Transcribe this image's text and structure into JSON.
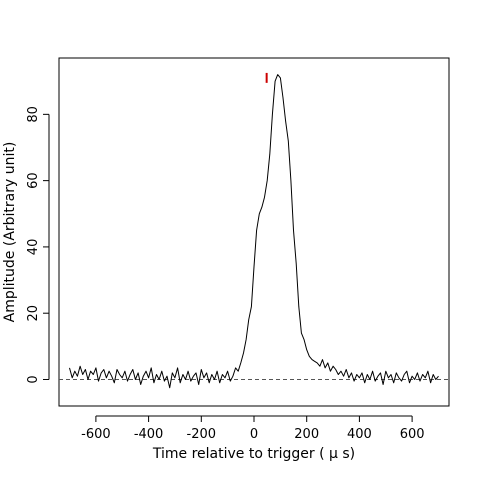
{
  "chart_data": {
    "type": "line",
    "xlabel": "Time relative to trigger ( μ s)",
    "ylabel": "Amplitude (Arbitrary unit)",
    "xlim": [
      -740,
      740
    ],
    "ylim": [
      -8,
      97
    ],
    "xticks": [
      -600,
      -400,
      -200,
      0,
      200,
      400,
      600
    ],
    "yticks": [
      0,
      20,
      40,
      60,
      80
    ],
    "grid": false,
    "legend": "none",
    "reference_line": {
      "y": 0,
      "style": "dashed"
    },
    "marker": {
      "x": 48,
      "y_from": 89.5,
      "y_to": 92.5
    },
    "colors": {
      "line": "#000000",
      "marker": "#cc0000",
      "axes": "#000000"
    },
    "series": [
      {
        "x": [
          -700,
          -690,
          -680,
          -670,
          -660,
          -650,
          -640,
          -630,
          -620,
          -610,
          -600,
          -590,
          -580,
          -570,
          -560,
          -550,
          -540,
          -530,
          -520,
          -510,
          -500,
          -490,
          -480,
          -470,
          -460,
          -450,
          -440,
          -430,
          -420,
          -410,
          -400,
          -390,
          -380,
          -370,
          -360,
          -350,
          -340,
          -330,
          -320,
          -310,
          -300,
          -290,
          -280,
          -270,
          -260,
          -250,
          -240,
          -230,
          -220,
          -210,
          -200,
          -190,
          -180,
          -170,
          -160,
          -150,
          -140,
          -130,
          -120,
          -110,
          -100,
          -90,
          -80,
          -70,
          -60,
          -50,
          -40,
          -30,
          -20,
          -10,
          0,
          10,
          20,
          30,
          40,
          50,
          60,
          70,
          80,
          90,
          100,
          110,
          120,
          130,
          140,
          150,
          160,
          170,
          180,
          190,
          200,
          210,
          220,
          230,
          240,
          250,
          260,
          270,
          280,
          290,
          300,
          310,
          320,
          330,
          340,
          350,
          360,
          370,
          380,
          390,
          400,
          410,
          420,
          430,
          440,
          450,
          460,
          470,
          480,
          490,
          500,
          510,
          520,
          530,
          540,
          550,
          560,
          570,
          580,
          590,
          600,
          610,
          620,
          630,
          640,
          650,
          660,
          670,
          680,
          690,
          700
        ],
        "y": [
          3.5,
          0.5,
          2.5,
          1.0,
          4.0,
          1.5,
          3.0,
          0.0,
          2.5,
          1.5,
          3.5,
          -0.5,
          2.0,
          3.0,
          0.5,
          2.5,
          1.0,
          -1.0,
          3.0,
          1.5,
          0.5,
          2.5,
          -0.5,
          1.5,
          3.0,
          0.0,
          2.0,
          -1.5,
          1.0,
          2.5,
          0.5,
          3.5,
          -1.0,
          1.5,
          0.0,
          2.5,
          -0.5,
          1.0,
          -2.5,
          2.0,
          0.5,
          3.5,
          -1.0,
          1.5,
          0.0,
          2.5,
          -0.5,
          1.0,
          2.0,
          -1.5,
          3.0,
          0.5,
          2.0,
          -1.0,
          1.5,
          0.0,
          2.5,
          -1.0,
          1.5,
          0.5,
          2.5,
          -0.5,
          1.0,
          3.5,
          2.5,
          5.0,
          8.0,
          12.0,
          18.0,
          22.0,
          34.0,
          45.0,
          50.0,
          52.0,
          55.0,
          60.0,
          68.0,
          80.0,
          90.0,
          92.0,
          91.0,
          85.0,
          78.0,
          72.0,
          60.0,
          45.0,
          35.0,
          22.0,
          14.0,
          12.0,
          9.0,
          7.0,
          6.0,
          5.5,
          5.0,
          4.0,
          6.0,
          3.5,
          5.0,
          2.5,
          4.0,
          3.0,
          1.5,
          2.5,
          1.0,
          3.0,
          0.5,
          2.0,
          -0.5,
          1.5,
          0.5,
          2.0,
          -1.0,
          1.5,
          0.0,
          2.5,
          -0.5,
          1.0,
          2.0,
          -1.5,
          2.5,
          0.5,
          1.5,
          -1.0,
          2.0,
          0.5,
          -0.5,
          1.5,
          2.5,
          -1.0,
          1.0,
          0.0,
          2.0,
          -0.5,
          1.5,
          0.5,
          2.5,
          -1.0,
          1.5,
          0.0,
          1.0
        ]
      }
    ]
  }
}
